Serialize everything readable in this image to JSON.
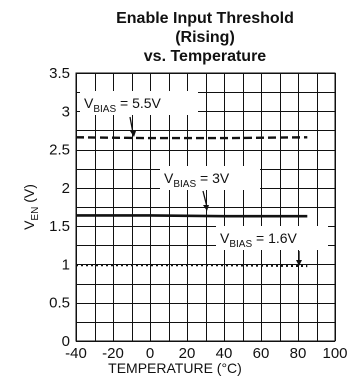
{
  "chart_data": {
    "type": "line",
    "title": [
      "Enable Input Threshold",
      "(Rising)",
      "vs. Temperature"
    ],
    "xlabel": "TEMPERATURE (°C)",
    "ylabel": {
      "main": "V",
      "sub": "EN",
      "unit": " (V)"
    },
    "xlim": [
      -40,
      100
    ],
    "ylim": [
      0,
      3.5
    ],
    "xticks": [
      -40,
      -20,
      0,
      20,
      40,
      60,
      80,
      100
    ],
    "yticks": [
      0,
      0.5,
      1,
      1.5,
      2,
      2.5,
      3,
      3.5
    ],
    "grid": true,
    "series": [
      {
        "name": {
          "main": "V",
          "sub": "BIAS",
          "rest": " = 5.5V"
        },
        "style": "dashed",
        "x": [
          -40,
          0,
          40,
          85
        ],
        "y": [
          2.66,
          2.65,
          2.65,
          2.66
        ]
      },
      {
        "name": {
          "main": "V",
          "sub": "BIAS",
          "rest": " = 3V"
        },
        "style": "solid",
        "x": [
          -40,
          0,
          40,
          85
        ],
        "y": [
          1.64,
          1.64,
          1.63,
          1.63
        ]
      },
      {
        "name": {
          "main": "V",
          "sub": "BIAS",
          "rest": " = 1.6V"
        },
        "style": "dotted",
        "x": [
          -40,
          0,
          40,
          85
        ],
        "y": [
          0.99,
          0.99,
          0.99,
          0.98
        ]
      }
    ]
  }
}
